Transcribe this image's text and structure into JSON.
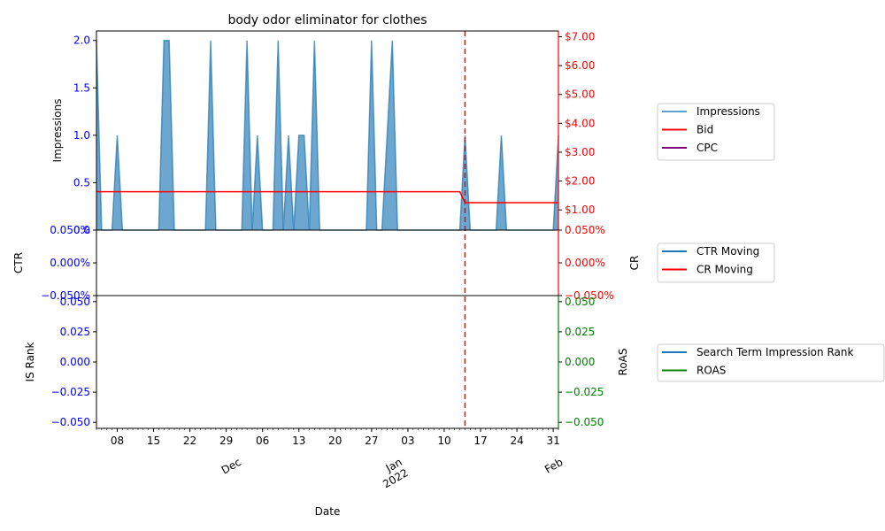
{
  "chart_data": {
    "title": "body odor eliminator for clothes",
    "xlabel": "Date",
    "x_range": [
      "2021-11-04",
      "2022-02-01"
    ],
    "x_ticks": [
      "08",
      "15",
      "22",
      "29",
      "06",
      "13",
      "20",
      "27",
      "03",
      "10",
      "17",
      "24",
      "31"
    ],
    "x_month_labels": [
      "Dec",
      "Jan\n2022",
      "Feb"
    ],
    "event_line": {
      "date": "2022-01-14",
      "color": "#ff0000",
      "style": "dashed"
    },
    "panels": [
      {
        "type": "area",
        "left_axis": {
          "label": "Impressions",
          "ylim": [
            0,
            2.1
          ],
          "ticks": [
            "0.0",
            "0.5",
            "1.0",
            "1.5",
            "2.0"
          ],
          "color": "#0000ff"
        },
        "right_axis": {
          "label": "",
          "ticks": [
            "$1.00",
            "$2.00",
            "$3.00",
            "$4.00",
            "$5.00",
            "$6.00",
            "$7.00"
          ],
          "color": "#ff0000",
          "ylim": [
            0.3,
            7.2
          ]
        },
        "series": [
          {
            "name": "Impressions",
            "color": "#1f77b4",
            "axis": "left",
            "kind": "area",
            "points": [
              [
                "2021-11-04",
                2
              ],
              [
                "2021-11-05",
                0
              ],
              [
                "2021-11-07",
                0
              ],
              [
                "2021-11-08",
                1
              ],
              [
                "2021-11-09",
                0
              ],
              [
                "2021-11-16",
                0
              ],
              [
                "2021-11-17",
                2
              ],
              [
                "2021-11-18",
                2
              ],
              [
                "2021-11-19",
                0
              ],
              [
                "2021-11-25",
                0
              ],
              [
                "2021-11-26",
                2
              ],
              [
                "2021-11-27",
                0
              ],
              [
                "2021-12-02",
                0
              ],
              [
                "2021-12-03",
                2
              ],
              [
                "2021-12-04",
                0
              ],
              [
                "2021-12-05",
                1
              ],
              [
                "2021-12-06",
                0
              ],
              [
                "2021-12-08",
                0
              ],
              [
                "2021-12-09",
                2
              ],
              [
                "2021-12-10",
                0
              ],
              [
                "2021-12-11",
                1
              ],
              [
                "2021-12-12",
                0
              ],
              [
                "2021-12-13",
                1
              ],
              [
                "2021-12-14",
                1
              ],
              [
                "2021-12-15",
                0
              ],
              [
                "2021-12-16",
                2
              ],
              [
                "2021-12-17",
                0
              ],
              [
                "2021-12-26",
                0
              ],
              [
                "2021-12-27",
                2
              ],
              [
                "2021-12-28",
                0
              ],
              [
                "2021-12-29",
                0
              ],
              [
                "2021-12-31",
                2
              ],
              [
                "2022-01-01",
                0
              ],
              [
                "2022-01-13",
                0
              ],
              [
                "2022-01-14",
                1
              ],
              [
                "2022-01-15",
                0
              ],
              [
                "2022-01-20",
                0
              ],
              [
                "2022-01-21",
                1
              ],
              [
                "2022-01-22",
                0
              ],
              [
                "2022-01-31",
                0
              ],
              [
                "2022-02-01",
                1
              ]
            ]
          },
          {
            "name": "Bid",
            "color": "#ff0000",
            "axis": "right",
            "kind": "line",
            "points": [
              [
                "2021-11-04",
                1.63
              ],
              [
                "2022-01-13",
                1.63
              ],
              [
                "2022-01-14",
                1.25
              ],
              [
                "2022-02-01",
                1.25
              ]
            ]
          },
          {
            "name": "CPC",
            "color": "#800080",
            "axis": "right",
            "kind": "line",
            "points": []
          }
        ],
        "legend": [
          "Impressions",
          "Bid",
          "CPC"
        ]
      },
      {
        "type": "line",
        "left_axis": {
          "label": "CTR",
          "ticks": [
            "−0.050%",
            "0.000%",
            "0.050%"
          ],
          "color": "#0000ff",
          "ylim": [
            -0.05,
            0.05
          ]
        },
        "right_axis": {
          "label": "CR",
          "ticks": [
            "−0.050%",
            "0.000%",
            "0.050%"
          ],
          "color": "#ff0000",
          "ylim": [
            -0.05,
            0.05
          ]
        },
        "series": [
          {
            "name": "CTR Moving",
            "color": "#1f77b4",
            "points": []
          },
          {
            "name": "CR Moving",
            "color": "#ff0000",
            "points": []
          }
        ],
        "legend": [
          "CTR Moving",
          "CR Moving"
        ]
      },
      {
        "type": "line",
        "left_axis": {
          "label": "IS Rank",
          "ticks": [
            "−0.050",
            "−0.025",
            "0.000",
            "0.025",
            "0.050"
          ],
          "color": "#0000ff",
          "ylim": [
            -0.055,
            0.055
          ]
        },
        "right_axis": {
          "label": "RoAS",
          "ticks": [
            "−0.050",
            "−0.025",
            "0.000",
            "0.025",
            "0.050"
          ],
          "color": "#008000",
          "ylim": [
            -0.055,
            0.055
          ]
        },
        "series": [
          {
            "name": "Search Term Impression Rank",
            "color": "#1f77b4",
            "points": []
          },
          {
            "name": "ROAS",
            "color": "#008000",
            "points": []
          }
        ],
        "legend": [
          "Search Term Impression Rank",
          "ROAS"
        ]
      }
    ]
  }
}
